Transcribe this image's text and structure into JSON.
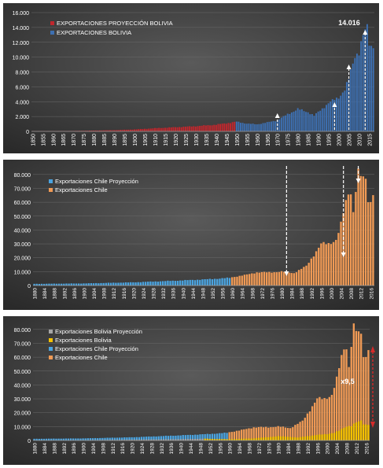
{
  "chart_data": [
    {
      "type": "bar",
      "panel": "bolivia",
      "ylim": [
        0,
        16000
      ],
      "y_ticks": [
        "0",
        "2.000",
        "4.000",
        "6.000",
        "8.000",
        "10.000",
        "12.000",
        "14.000",
        "16.000"
      ],
      "x_range": [
        1850,
        2017
      ],
      "x_ticks": [
        "1850",
        "1855",
        "1860",
        "1865",
        "1870",
        "1875",
        "1880",
        "1885",
        "1890",
        "1895",
        "1900",
        "1905",
        "1910",
        "1915",
        "1920",
        "1925",
        "1930",
        "1935",
        "1940",
        "1945",
        "1950",
        "1955",
        "1960",
        "1965",
        "1970",
        "1975",
        "1980",
        "1985",
        "1990",
        "1995",
        "2000",
        "2005",
        "2010",
        "2015"
      ],
      "series": [
        {
          "name": "EXPORTACIONES PROYECCIÓN BOLIVIA",
          "color": "#c0272d",
          "x_range": [
            1850,
            1949
          ]
        },
        {
          "name": "EXPORTACIONES BOLIVIA",
          "color": "#3d6fb0",
          "x_range": [
            1950,
            2017
          ]
        }
      ],
      "anchors": [
        [
          1850,
          30
        ],
        [
          1870,
          60
        ],
        [
          1890,
          160
        ],
        [
          1900,
          260
        ],
        [
          1910,
          420
        ],
        [
          1920,
          560
        ],
        [
          1930,
          700
        ],
        [
          1940,
          900
        ],
        [
          1949,
          1250
        ],
        [
          1950,
          1300
        ],
        [
          1955,
          1050
        ],
        [
          1960,
          950
        ],
        [
          1965,
          1200
        ],
        [
          1970,
          1500
        ],
        [
          1975,
          2300
        ],
        [
          1980,
          3000
        ],
        [
          1985,
          2600
        ],
        [
          1988,
          2100
        ],
        [
          1990,
          2600
        ],
        [
          1995,
          3800
        ],
        [
          2000,
          4600
        ],
        [
          2003,
          5600
        ],
        [
          2005,
          7000
        ],
        [
          2007,
          9200
        ],
        [
          2008,
          10300
        ],
        [
          2010,
          10700
        ],
        [
          2012,
          12800
        ],
        [
          2014,
          14016
        ],
        [
          2015,
          12000
        ],
        [
          2016,
          11500
        ],
        [
          2017,
          11800
        ]
      ],
      "annotation": "14.016",
      "arrows_at": [
        1970,
        1998,
        2005,
        2013
      ]
    },
    {
      "type": "bar",
      "panel": "chile",
      "ylim": [
        0,
        85000
      ],
      "y_ticks": [
        "0",
        "10.000",
        "20.000",
        "30.000",
        "40.000",
        "50.000",
        "60.000",
        "70.000",
        "80.000"
      ],
      "x_range": [
        1880,
        2017
      ],
      "x_ticks": [
        "1880",
        "1884",
        "1888",
        "1892",
        "1896",
        "1900",
        "1904",
        "1908",
        "1912",
        "1916",
        "1920",
        "1924",
        "1928",
        "1932",
        "1936",
        "1940",
        "1944",
        "1948",
        "1952",
        "1956",
        "1960",
        "1964",
        "1968",
        "1972",
        "1976",
        "1980",
        "1984",
        "1988",
        "1992",
        "1996",
        "2000",
        "2004",
        "2008",
        "2012",
        "2016"
      ],
      "series": [
        {
          "name": "Exportaciones Chile Proyección",
          "color": "#4aa3df",
          "x_range": [
            1880,
            1959
          ]
        },
        {
          "name": "Exportaciones Chile",
          "color": "#f09a55",
          "x_range": [
            1960,
            2017
          ]
        }
      ],
      "anchors": [
        [
          1880,
          1200
        ],
        [
          1900,
          1500
        ],
        [
          1920,
          2300
        ],
        [
          1930,
          3000
        ],
        [
          1940,
          3700
        ],
        [
          1950,
          4500
        ],
        [
          1959,
          5500
        ],
        [
          1960,
          6000
        ],
        [
          1965,
          7500
        ],
        [
          1970,
          9500
        ],
        [
          1975,
          9500
        ],
        [
          1980,
          10000
        ],
        [
          1985,
          9000
        ],
        [
          1990,
          14000
        ],
        [
          1993,
          22000
        ],
        [
          1996,
          30000
        ],
        [
          1999,
          30000
        ],
        [
          2002,
          33000
        ],
        [
          2004,
          44000
        ],
        [
          2006,
          60000
        ],
        [
          2007,
          66000
        ],
        [
          2008,
          68000
        ],
        [
          2009,
          53000
        ],
        [
          2010,
          70000
        ],
        [
          2011,
          82000
        ],
        [
          2012,
          78000
        ],
        [
          2013,
          77000
        ],
        [
          2014,
          75000
        ],
        [
          2015,
          62000
        ],
        [
          2016,
          60000
        ],
        [
          2017,
          68000
        ]
      ],
      "arrows_at": [
        1982,
        2005,
        2011
      ]
    },
    {
      "type": "bar",
      "panel": "combined",
      "ylim": [
        0,
        85000
      ],
      "y_ticks": [
        "0",
        "10.000",
        "20.000",
        "30.000",
        "40.000",
        "50.000",
        "60.000",
        "70.000",
        "80.000"
      ],
      "x_range": [
        1880,
        2017
      ],
      "x_ticks": [
        "1880",
        "1884",
        "1888",
        "1892",
        "1896",
        "1900",
        "1904",
        "1908",
        "1912",
        "1916",
        "1920",
        "1924",
        "1928",
        "1932",
        "1936",
        "1940",
        "1944",
        "1948",
        "1952",
        "1956",
        "1960",
        "1964",
        "1968",
        "1972",
        "1976",
        "1980",
        "1984",
        "1988",
        "1992",
        "1996",
        "2000",
        "2004",
        "2008",
        "2012",
        "2016"
      ],
      "series": [
        {
          "name": "Exportaciones Bolivia Proyección",
          "color": "#a6a6a6",
          "x_range": [
            1880,
            1949
          ]
        },
        {
          "name": "Exportaciones Bolivia",
          "color": "#f5c200",
          "x_range": [
            1950,
            2017
          ]
        },
        {
          "name": "Exportaciones Chile Proyección",
          "color": "#4aa3df",
          "x_range": [
            1880,
            1959
          ]
        },
        {
          "name": "Exportaciones Chile",
          "color": "#f09a55",
          "x_range": [
            1960,
            2017
          ]
        }
      ],
      "annotation": "x9,5"
    }
  ]
}
